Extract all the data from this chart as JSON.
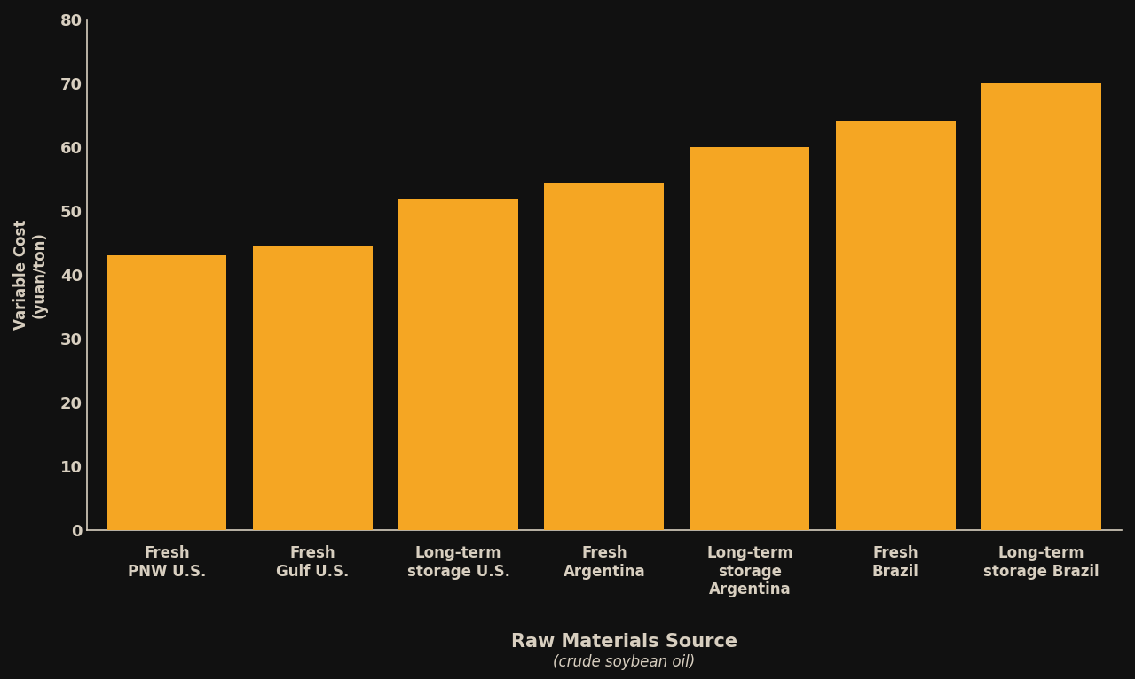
{
  "categories": [
    "Fresh\nPNW U.S.",
    "Fresh\nGulf U.S.",
    "Long-term\nstorage U.S.",
    "Fresh\nArgentina",
    "Long-term\nstorage\nArgentina",
    "Fresh\nBrazil",
    "Long-term\nstorage Brazil"
  ],
  "values": [
    43,
    44.5,
    52,
    54.5,
    60,
    64,
    70
  ],
  "bar_color": "#F5A623",
  "background_color": "#111111",
  "text_color": "#d8cfc0",
  "ylabel_main": "Variable Cost",
  "ylabel_sub": "(yuan/ton)",
  "xlabel_main": "Raw Materials Source",
  "xlabel_sub": "(crude soybean oil)",
  "ylim": [
    0,
    80
  ],
  "yticks": [
    0,
    10,
    20,
    30,
    40,
    50,
    60,
    70,
    80
  ],
  "bar_width": 0.82,
  "label_fontsize": 12,
  "tick_fontsize": 13,
  "ylabel_fontsize": 12,
  "xlabel_main_fontsize": 15,
  "xlabel_sub_fontsize": 12
}
